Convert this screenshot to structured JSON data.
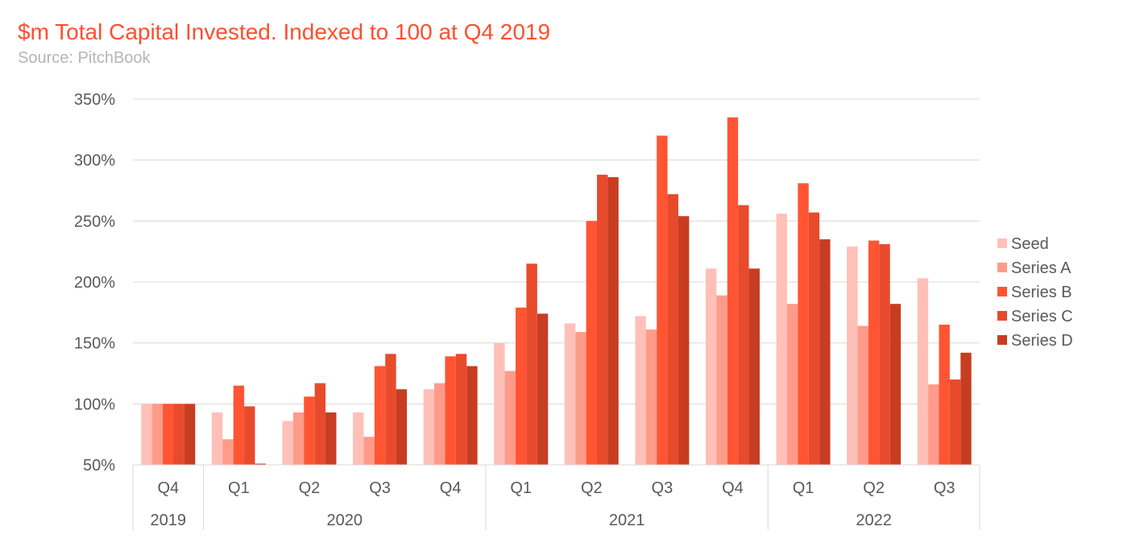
{
  "title": "$m Total Capital Invested. Indexed to 100 at Q4 2019",
  "subtitle": "Source: PitchBook",
  "chart_data": {
    "type": "bar",
    "title": "$m Total Capital Invested. Indexed to 100 at Q4 2019",
    "subtitle": "Source: PitchBook",
    "categories": [
      "Q4 2019",
      "Q1 2020",
      "Q2 2020",
      "Q3 2020",
      "Q4 2020",
      "Q1 2021",
      "Q2 2021",
      "Q3 2021",
      "Q4 2021",
      "Q1 2022",
      "Q2 2022",
      "Q3 2022"
    ],
    "quarter_labels": [
      "Q4",
      "Q1",
      "Q2",
      "Q3",
      "Q4",
      "Q1",
      "Q2",
      "Q3",
      "Q4",
      "Q1",
      "Q2",
      "Q3"
    ],
    "year_groups": [
      {
        "label": "2019",
        "count": 1
      },
      {
        "label": "2020",
        "count": 4
      },
      {
        "label": "2021",
        "count": 4
      },
      {
        "label": "2022",
        "count": 3
      }
    ],
    "ylim": [
      50,
      350
    ],
    "yticks": [
      50,
      100,
      150,
      200,
      250,
      300,
      350
    ],
    "ytick_labels": [
      "50%",
      "100%",
      "150%",
      "200%",
      "250%",
      "300%",
      "350%"
    ],
    "grid": true,
    "legend_position": "right",
    "series": [
      {
        "name": "Seed",
        "color": "#ffc0b8",
        "values": [
          100,
          93,
          86,
          93,
          112,
          150,
          166,
          172,
          211,
          256,
          229,
          203
        ]
      },
      {
        "name": "Series A",
        "color": "#ff9b8a",
        "values": [
          100,
          71,
          93,
          73,
          117,
          127,
          159,
          161,
          189,
          182,
          164,
          116
        ]
      },
      {
        "name": "Series B",
        "color": "#ff5533",
        "values": [
          100,
          115,
          106,
          131,
          139,
          179,
          250,
          320,
          335,
          281,
          234,
          165
        ]
      },
      {
        "name": "Series C",
        "color": "#e84a2c",
        "values": [
          100,
          98,
          117,
          141,
          141,
          215,
          288,
          272,
          263,
          257,
          231,
          120
        ]
      },
      {
        "name": "Series D",
        "color": "#c73d22",
        "values": [
          100,
          51,
          93,
          112,
          131,
          174,
          286,
          254,
          211,
          235,
          182,
          142
        ]
      }
    ]
  }
}
